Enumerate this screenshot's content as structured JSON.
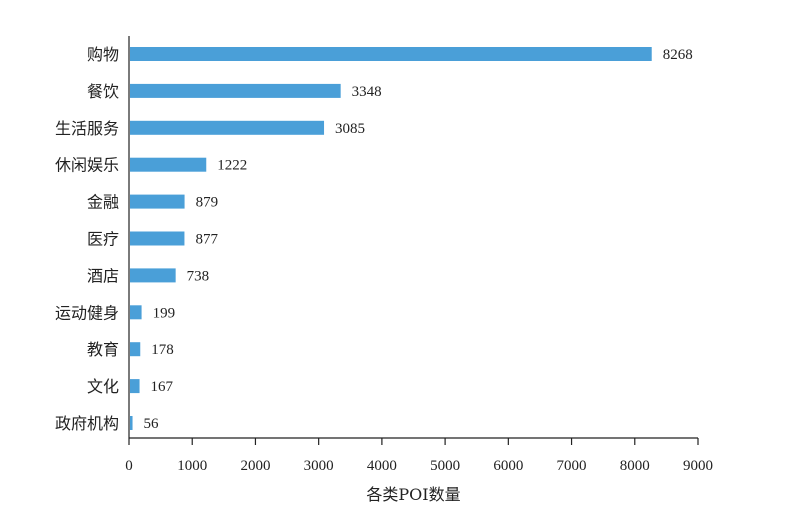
{
  "chart_data": {
    "type": "bar",
    "orientation": "horizontal",
    "categories": [
      "购物",
      "餐饮",
      "生活服务",
      "休闲娱乐",
      "金融",
      "医疗",
      "酒店",
      "运动健身",
      "教育",
      "文化",
      "政府机构"
    ],
    "values": [
      8268,
      3348,
      3085,
      1222,
      879,
      877,
      738,
      199,
      178,
      167,
      56
    ],
    "xlabel": "各类POI数量",
    "xlim": [
      0,
      9000
    ],
    "xticks": [
      0,
      1000,
      2000,
      3000,
      4000,
      5000,
      6000,
      7000,
      8000,
      9000
    ],
    "bar_color": "#4a9fd8",
    "grid": false,
    "data_labels": true
  }
}
